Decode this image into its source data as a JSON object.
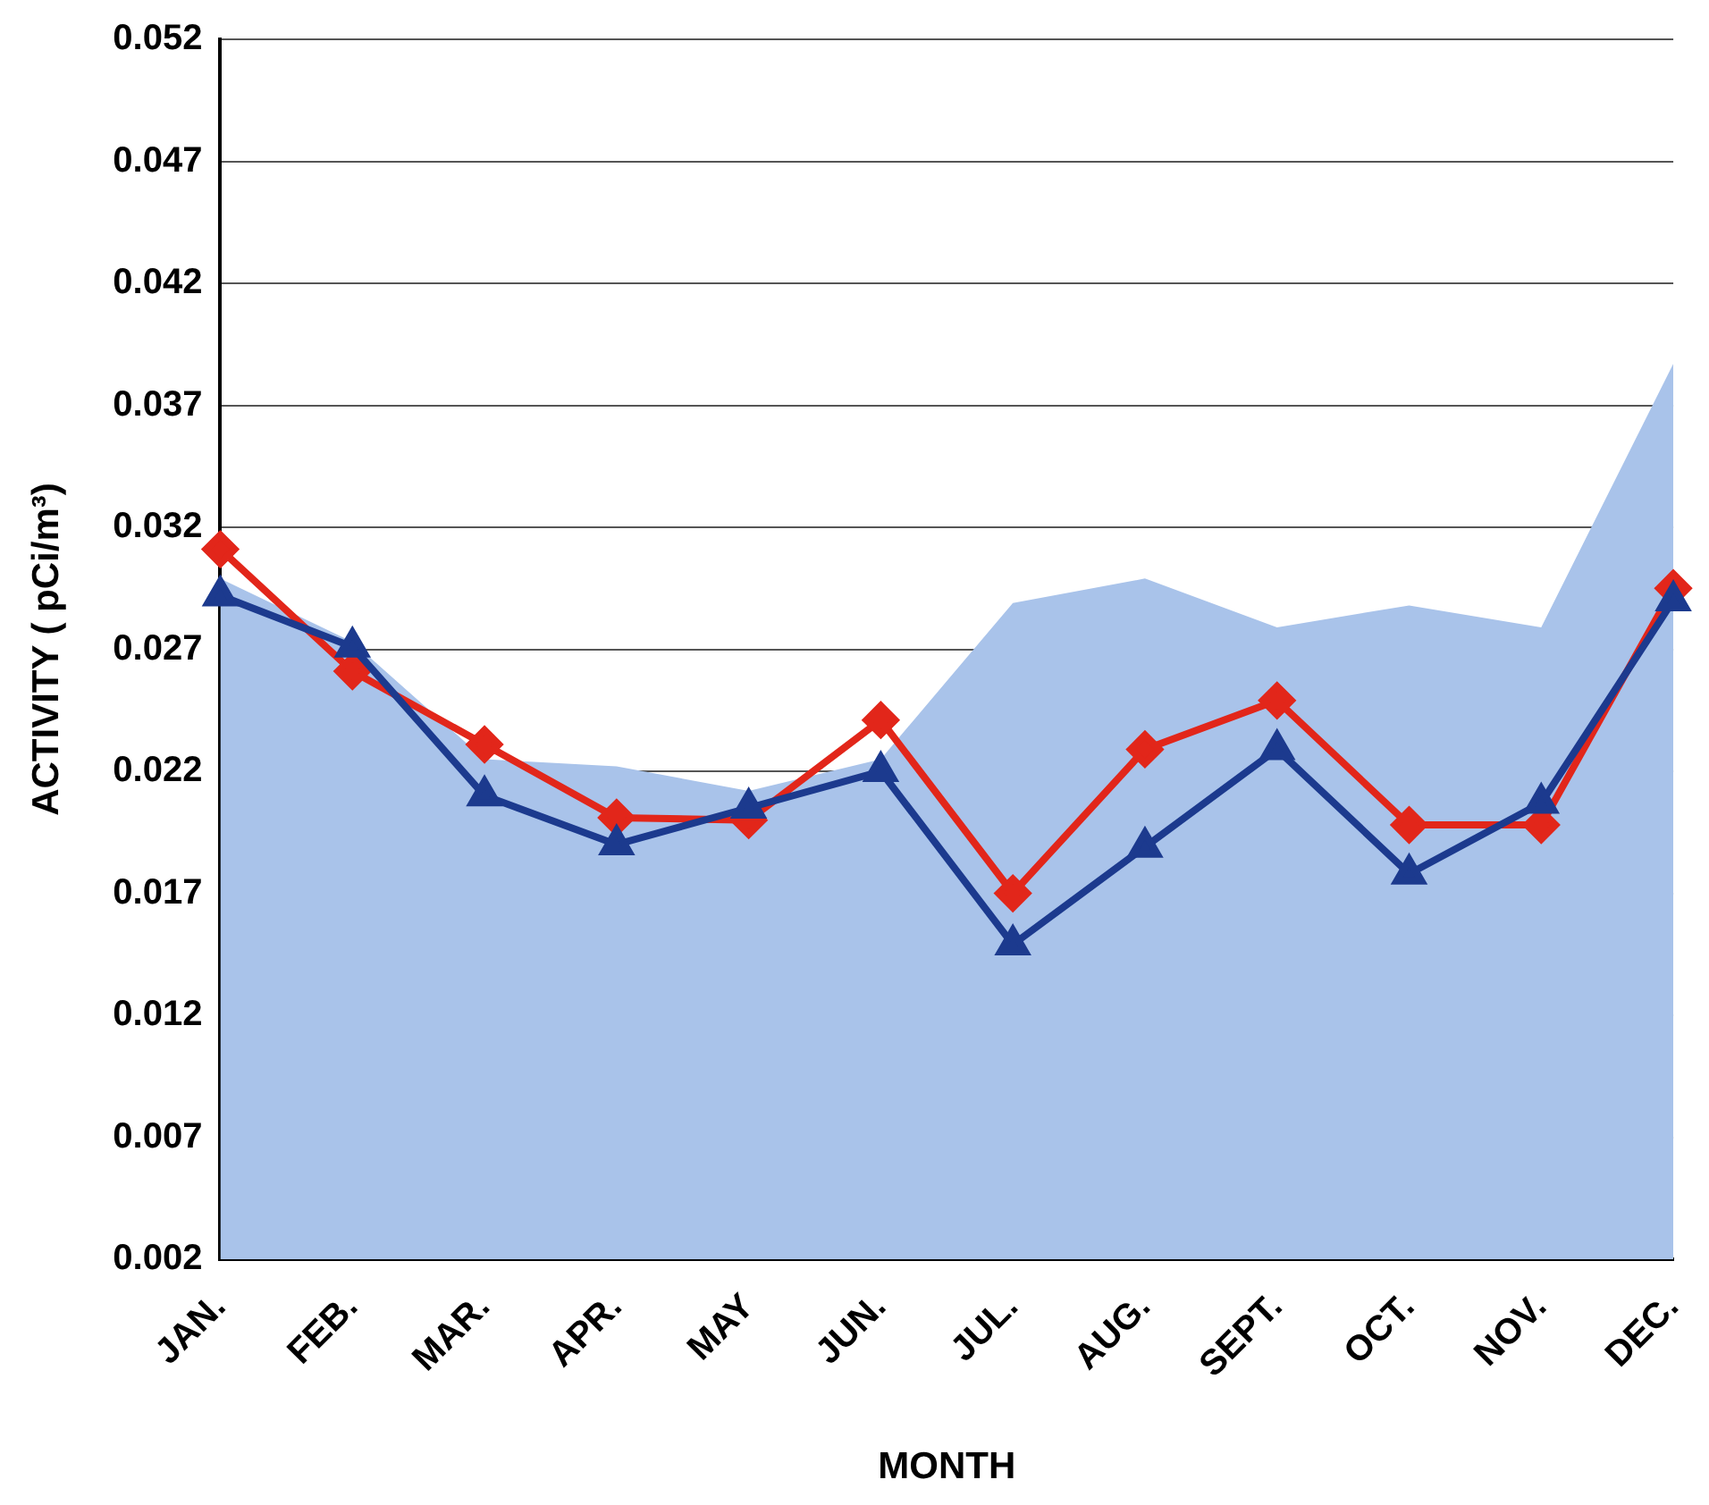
{
  "chart_data": {
    "type": "line",
    "xlabel": "MONTH",
    "ylabel": "ACTIVITY ( pCi/m³)",
    "categories": [
      "JAN.",
      "FEB.",
      "MAR.",
      "APR.",
      "MAY",
      "JUN.",
      "JUL.",
      "AUG.",
      "SEPT.",
      "OCT.",
      "NOV.",
      "DEC."
    ],
    "series": [
      {
        "type": "area",
        "color": "#a9c3ea",
        "marker": "none",
        "values": [
          0.0299,
          0.0273,
          0.0225,
          0.0222,
          0.0212,
          0.0225,
          0.0289,
          0.0299,
          0.0279,
          0.0288,
          0.0279,
          0.0387
        ]
      },
      {
        "color": "#1c3a8e",
        "marker": "triangle",
        "values": [
          0.0292,
          0.0271,
          0.021,
          0.019,
          0.0205,
          0.022,
          0.0149,
          0.0189,
          0.0229,
          0.0178,
          0.0207,
          0.029
        ]
      },
      {
        "color": "#e2261a",
        "marker": "diamond",
        "values": [
          0.0311,
          0.0261,
          0.0231,
          0.0201,
          0.02,
          0.0241,
          0.017,
          0.0229,
          0.0249,
          0.0198,
          0.0198,
          0.0295
        ]
      }
    ],
    "ylim": [
      0.002,
      0.052
    ],
    "yticks": [
      0.002,
      0.007,
      0.012,
      0.017,
      0.022,
      0.027,
      0.032,
      0.037,
      0.042,
      0.047,
      0.052
    ],
    "grid": "y",
    "legend": false,
    "line_style": "solid"
  }
}
